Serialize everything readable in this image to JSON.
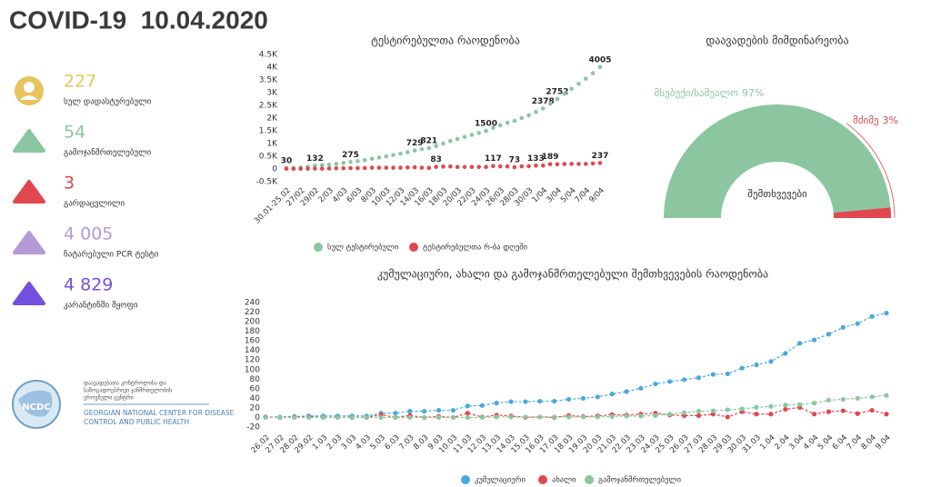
{
  "header": {
    "title": "COVID-19  10.04.2020"
  },
  "stats": [
    {
      "value": "227",
      "label": "სულ დადასტურებული",
      "color": "#e8c35c"
    },
    {
      "value": "54",
      "label": "გამოჯანმრთელებული",
      "color": "#8bc6a0"
    },
    {
      "value": "3",
      "label": "გარდაცვლილი",
      "color": "#e0474f"
    },
    {
      "value": "4 005",
      "label": "ჩატარებული PCR ტესტი",
      "color": "#b49ad6"
    },
    {
      "value": "4 829",
      "label": "კარანტინში მყოფი",
      "color": "#7450e0"
    }
  ],
  "logo": {
    "name": "NCDC",
    "ka": [
      "დაავადებათა კონტროლისა და",
      "საზოგადოებრივი ჯანმრთელობის",
      "ეროვნული ცენტრი"
    ],
    "en": [
      "GEORGIAN NATIONAL CENTER FOR DISEASE",
      "CONTROL AND PUBLIC HEALTH"
    ]
  },
  "chart_data": [
    {
      "type": "line",
      "title": "ტესტირებულთა რაოდენობა",
      "categories": [
        "30.01-25.02",
        null,
        "27/02",
        null,
        "29/02",
        null,
        "2/03",
        null,
        "4/03",
        null,
        "6/03",
        null,
        "8/03",
        null,
        "10/03",
        null,
        "12/03",
        null,
        "14/03",
        null,
        "16/03",
        null,
        "18/03",
        null,
        "20/03",
        null,
        "22/03",
        null,
        "24/03",
        null,
        "26/03",
        null,
        "28/03",
        null,
        "30/03",
        null,
        "1/04",
        null,
        "3/04",
        null,
        "5/04",
        null,
        "7/04",
        null,
        "9/04"
      ],
      "ylim": [
        -500,
        4500
      ],
      "yticks": [
        {
          "value": -500,
          "label": "-0.5K"
        },
        0,
        {
          "value": 500,
          "label": "0.5K"
        },
        {
          "value": 1000,
          "label": "1K"
        },
        {
          "value": 1500,
          "label": "1.5K"
        },
        {
          "value": 2000,
          "label": "2K"
        },
        {
          "value": 2500,
          "label": "2.5K"
        },
        {
          "value": 3000,
          "label": "3K"
        },
        {
          "value": 3500,
          "label": "3.5K"
        },
        {
          "value": 4000,
          "label": "4K"
        },
        {
          "value": 4500,
          "label": "4.5K"
        }
      ],
      "grid": false,
      "lines": false,
      "series": [
        {
          "name": "სულ ტესტირებული",
          "color": "#8bc6a0",
          "values": [
            30,
            40,
            60,
            90,
            132,
            150,
            170,
            200,
            240,
            275,
            310,
            350,
            400,
            450,
            500,
            550,
            600,
            660,
            729,
            780,
            821,
            904,
            1000,
            1100,
            1180,
            1260,
            1340,
            1420,
            1500,
            1617,
            1720,
            1820,
            1893,
            2000,
            2110,
            2243,
            2378,
            2567,
            2752,
            2950,
            3150,
            3350,
            3550,
            3768,
            4005
          ],
          "value_labels": [
            "30",
            null,
            null,
            null,
            "132",
            null,
            null,
            null,
            null,
            "275",
            null,
            null,
            null,
            null,
            null,
            null,
            null,
            null,
            "729",
            null,
            "821",
            null,
            null,
            null,
            null,
            null,
            null,
            null,
            "1500",
            null,
            null,
            null,
            null,
            null,
            null,
            null,
            "2378",
            null,
            "2752",
            null,
            null,
            null,
            null,
            null,
            "4005"
          ]
        },
        {
          "name": "ტესტირებულთა რ-ბა დღეში",
          "color": "#e0474f",
          "values": [
            10,
            5,
            10,
            15,
            20,
            15,
            20,
            25,
            30,
            35,
            35,
            40,
            50,
            50,
            50,
            50,
            50,
            60,
            69,
            51,
            42,
            83,
            96,
            100,
            80,
            80,
            80,
            80,
            80,
            117,
            103,
            100,
            73,
            107,
            110,
            133,
            135,
            189,
            185,
            198,
            200,
            200,
            200,
            218,
            237
          ],
          "value_labels": [
            null,
            null,
            null,
            null,
            null,
            null,
            null,
            null,
            null,
            null,
            null,
            null,
            null,
            null,
            null,
            null,
            null,
            null,
            null,
            null,
            null,
            "83",
            null,
            null,
            null,
            null,
            null,
            null,
            null,
            "117",
            null,
            null,
            "73",
            null,
            null,
            "133",
            null,
            "189",
            null,
            null,
            null,
            null,
            null,
            null,
            "237"
          ]
        }
      ]
    },
    {
      "type": "gauge",
      "title": "დაავადების მიმდინარეობა",
      "center_label": "შემთხვევები",
      "categories": [
        "მსუბუქი/საშუალო",
        "მძიმე"
      ],
      "values": [
        97,
        3
      ],
      "value_labels": [
        "97%",
        "3%"
      ],
      "colors": [
        "#8bc6a0",
        "#e0474f"
      ]
    },
    {
      "type": "line",
      "title": "კუმულაციური, ახალი და გამოჯანმრთელებული შემთხვევების რაოდენობა",
      "categories": [
        "26.02",
        "27.02",
        "28.02",
        "29.02",
        "1.03",
        "2.03",
        "3.03",
        "4.03",
        "5.03",
        "6.03",
        "7.03",
        "8.03",
        "9.03",
        "10.03",
        "11.03",
        "12.03",
        "13.03",
        "14.03",
        "15.03",
        "16.03",
        "17.03",
        "18.03",
        "19.03",
        "20.03",
        "21.03",
        "22.03",
        "23.03",
        "24.03",
        "25.03",
        "26.03",
        "27.03",
        "28.03",
        "29.03",
        "30.03",
        "31.03",
        "1.04",
        "2.04",
        "3.04",
        "4.04",
        "5.04",
        "6.04",
        "7.04",
        "8.04",
        "9.04"
      ],
      "ylim": [
        -20,
        240
      ],
      "yticks": [
        -20,
        0,
        20,
        40,
        60,
        80,
        100,
        120,
        140,
        160,
        180,
        200,
        220,
        240
      ],
      "grid": false,
      "lines": true,
      "series": [
        {
          "name": "კუმულაციური",
          "color": "#4aa8e0",
          "values": [
            1,
            1,
            2,
            3,
            3,
            3,
            3,
            3,
            9,
            9,
            13,
            13,
            15,
            15,
            24,
            25,
            30,
            33,
            33,
            34,
            34,
            38,
            40,
            43,
            49,
            54,
            61,
            70,
            75,
            79,
            83,
            90,
            91,
            103,
            110,
            117,
            134,
            155,
            162,
            174,
            188,
            196,
            211,
            218
          ]
        },
        {
          "name": "ახალი",
          "color": "#e0474f",
          "values": [
            1,
            0,
            1,
            1,
            0,
            0,
            0,
            0,
            6,
            0,
            4,
            0,
            2,
            0,
            9,
            1,
            5,
            3,
            0,
            1,
            0,
            4,
            2,
            3,
            6,
            5,
            7,
            9,
            5,
            4,
            4,
            7,
            1,
            12,
            7,
            7,
            17,
            21,
            7,
            12,
            14,
            8,
            15,
            7
          ]
        },
        {
          "name": "გამოჯანმრთელებული",
          "color": "#8bc6a0",
          "values": [
            0,
            0,
            0,
            0,
            0,
            0,
            0,
            0,
            0,
            0,
            0,
            0,
            0,
            0,
            0,
            0,
            1,
            1,
            1,
            1,
            1,
            1,
            1,
            1,
            2,
            3,
            3,
            4,
            7,
            10,
            13,
            14,
            16,
            18,
            21,
            23,
            26,
            27,
            30,
            36,
            38,
            40,
            43,
            46
          ]
        }
      ]
    }
  ]
}
